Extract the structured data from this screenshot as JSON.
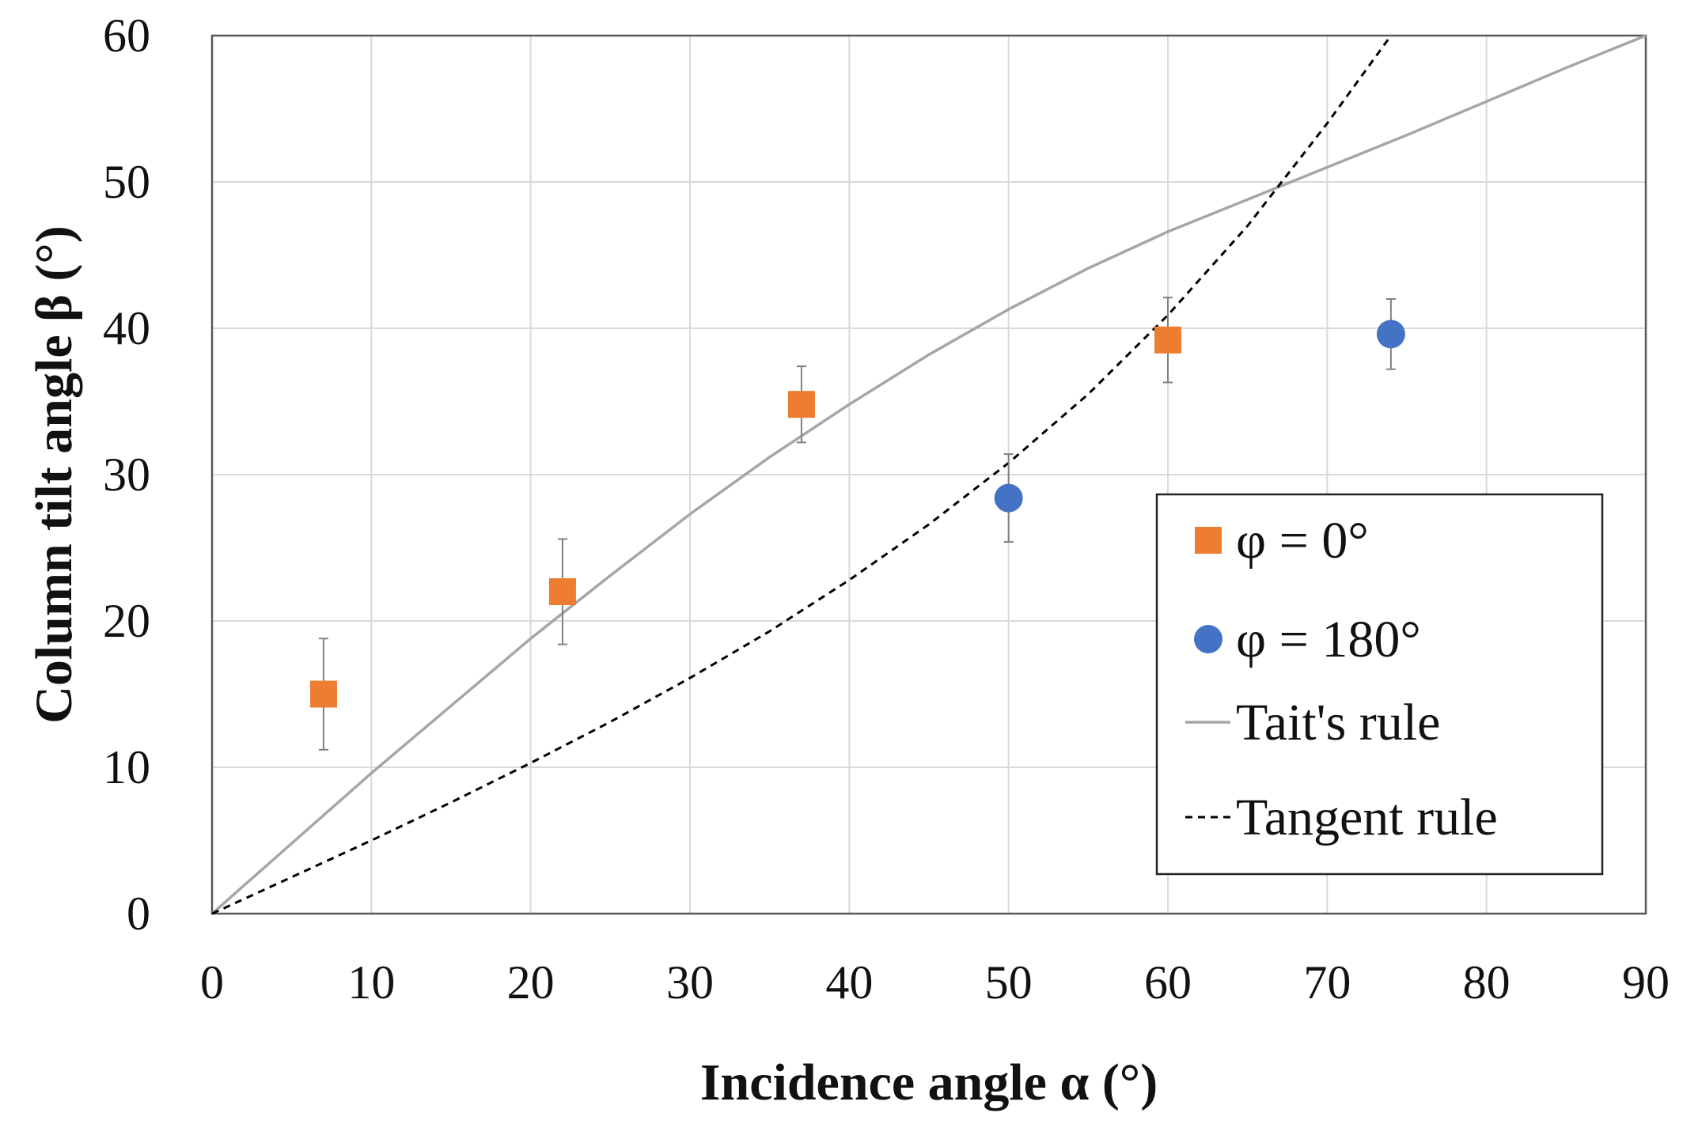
{
  "chart_data": {
    "type": "scatter",
    "xlabel": "Incidence angle α (°)",
    "ylabel": "Column tilt angle β (°)",
    "xlim": [
      0,
      90
    ],
    "ylim": [
      0,
      60
    ],
    "xticks": [
      0,
      10,
      20,
      30,
      40,
      50,
      60,
      70,
      80,
      90
    ],
    "yticks": [
      0,
      10,
      20,
      30,
      40,
      50,
      60
    ],
    "grid": true,
    "legend_position": "bottom-right",
    "series": [
      {
        "name": "φ = 0°",
        "kind": "points",
        "marker": "square",
        "color": "#ED7D31",
        "points": [
          {
            "x": 7,
            "y": 15,
            "err": 3.8
          },
          {
            "x": 22,
            "y": 22,
            "err": 3.6
          },
          {
            "x": 37,
            "y": 34.8,
            "err": 2.6
          },
          {
            "x": 60,
            "y": 39.2,
            "err": 2.9
          }
        ]
      },
      {
        "name": "φ = 180°",
        "kind": "points",
        "marker": "circle",
        "color": "#4472C4",
        "points": [
          {
            "x": 50,
            "y": 28.4,
            "err": 3.0
          },
          {
            "x": 74,
            "y": 39.6,
            "err": 2.4
          }
        ]
      },
      {
        "name": "Tait's rule",
        "kind": "line",
        "style": "solid",
        "color": "#A6A6A6",
        "x": [
          0,
          5,
          10,
          15,
          20,
          25,
          30,
          35,
          40,
          45,
          50,
          55,
          60,
          65,
          70,
          75,
          80,
          85,
          90
        ],
        "y": [
          0,
          4.8,
          9.6,
          14.2,
          18.8,
          23.1,
          27.3,
          31.2,
          34.8,
          38.2,
          41.3,
          44.1,
          46.6,
          48.8,
          51.0,
          53.2,
          55.5,
          57.8,
          60.0
        ]
      },
      {
        "name": "Tangent rule",
        "kind": "line",
        "style": "dashed",
        "color": "#000000",
        "x": [
          0,
          5,
          10,
          15,
          20,
          25,
          30,
          35,
          40,
          45,
          50,
          55,
          60,
          65,
          70,
          74
        ],
        "y": [
          0,
          2.5,
          5.0,
          7.6,
          10.3,
          13.1,
          16.1,
          19.3,
          22.8,
          26.6,
          30.8,
          35.5,
          40.9,
          47.0,
          54.0,
          60.0
        ]
      }
    ]
  },
  "legend": {
    "items": [
      {
        "label": "φ = 0°"
      },
      {
        "label": "φ = 180°"
      },
      {
        "label": "Tait's rule"
      },
      {
        "label": "Tangent rule"
      }
    ]
  }
}
